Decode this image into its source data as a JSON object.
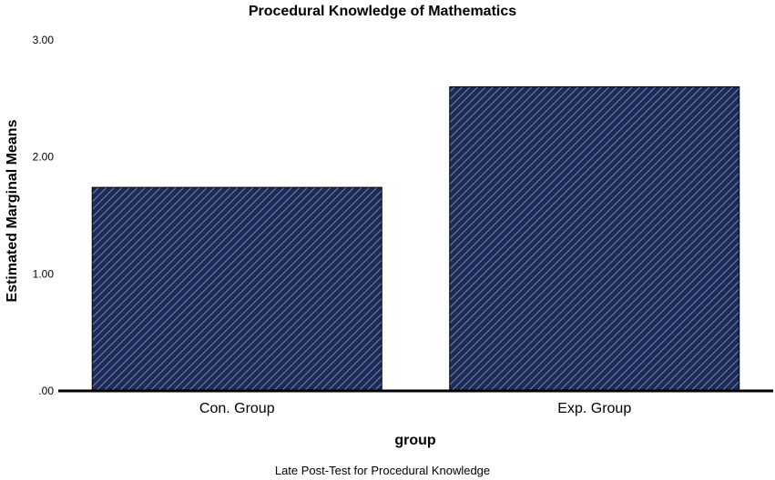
{
  "chart_data": {
    "type": "bar",
    "title": "Procedural Knowledge of Mathematics",
    "xlabel": "group",
    "ylabel": "Estimated Marginal Means",
    "footnote": "Late Post-Test for Procedural Knowledge",
    "categories": [
      "Con. Group",
      "Exp. Group"
    ],
    "values": [
      1.74,
      2.6
    ],
    "ylim": [
      0,
      3
    ],
    "yticks": [
      0,
      1,
      2,
      3
    ],
    "ytick_labels": [
      ".00",
      "1.00",
      "2.00",
      "3.00"
    ],
    "grid": false,
    "legend": "none",
    "bar_fill": "#1f2a4d",
    "bar_hatch": "#5a7fd0",
    "bar_stroke": "#000000"
  }
}
